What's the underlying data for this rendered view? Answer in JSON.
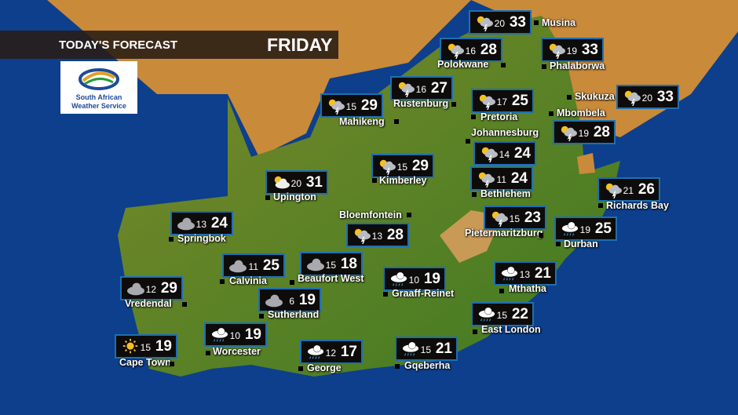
{
  "header": {
    "title": "TODAY'S FORECAST",
    "day": "FRIDAY"
  },
  "logo": {
    "line1": "South African",
    "line2": "Weather Service"
  },
  "colors": {
    "ocean": "#0d3f8c",
    "land_green": "#5e8a2a",
    "land_desert": "#c98a3a",
    "box_border": "#1f6fb0"
  },
  "stations": [
    {
      "name": "Musina",
      "min": "20",
      "max": "33",
      "icon": "thunder-partly-cloudy"
    },
    {
      "name": "Polokwane",
      "min": "16",
      "max": "28",
      "icon": "thunder-partly-cloudy"
    },
    {
      "name": "Phalaborwa",
      "min": "19",
      "max": "33",
      "icon": "thunder-partly-cloudy"
    },
    {
      "name": "Rustenburg",
      "min": "16",
      "max": "27",
      "icon": "thunder-partly-cloudy"
    },
    {
      "name": "Mahikeng",
      "min": "15",
      "max": "29",
      "icon": "thunder-partly-cloudy"
    },
    {
      "name": "Pretoria",
      "min": "17",
      "max": "25",
      "icon": "thunder-partly-cloudy"
    },
    {
      "name": "Skukuza",
      "min": "20",
      "max": "33",
      "icon": "thunder-partly-cloudy"
    },
    {
      "name": "Mbombela",
      "min": "19",
      "max": "28",
      "icon": "thunder-partly-cloudy"
    },
    {
      "name": "Johannesburg",
      "min": "14",
      "max": "24",
      "icon": "thunder-partly-cloudy"
    },
    {
      "name": "Kimberley",
      "min": "15",
      "max": "29",
      "icon": "thunder-partly-cloudy"
    },
    {
      "name": "Bethlehem",
      "min": "11",
      "max": "24",
      "icon": "thunder-partly-cloudy"
    },
    {
      "name": "Upington",
      "min": "20",
      "max": "31",
      "icon": "partly-cloudy"
    },
    {
      "name": "Richards Bay",
      "min": "21",
      "max": "26",
      "icon": "thunder-partly-cloudy"
    },
    {
      "name": "Bloemfontein",
      "min": "13",
      "max": "28",
      "icon": "thunder-partly-cloudy"
    },
    {
      "name": "Pietermaritzburg",
      "min": "15",
      "max": "23",
      "icon": "thunder-partly-cloudy"
    },
    {
      "name": "Durban",
      "min": "19",
      "max": "25",
      "icon": "rain"
    },
    {
      "name": "Springbok",
      "min": "13",
      "max": "24",
      "icon": "cloudy"
    },
    {
      "name": "Calvinia",
      "min": "11",
      "max": "25",
      "icon": "cloudy"
    },
    {
      "name": "Beaufort West",
      "min": "15",
      "max": "18",
      "icon": "cloudy"
    },
    {
      "name": "Graaff-Reinet",
      "min": "10",
      "max": "19",
      "icon": "rain"
    },
    {
      "name": "Mthatha",
      "min": "13",
      "max": "21",
      "icon": "rain"
    },
    {
      "name": "Vredendal",
      "min": "12",
      "max": "29",
      "icon": "cloudy"
    },
    {
      "name": "Sutherland",
      "min": "6",
      "max": "19",
      "icon": "cloudy"
    },
    {
      "name": "East London",
      "min": "15",
      "max": "22",
      "icon": "rain"
    },
    {
      "name": "Worcester",
      "min": "10",
      "max": "19",
      "icon": "rain"
    },
    {
      "name": "Cape Town",
      "min": "15",
      "max": "19",
      "icon": "sunny"
    },
    {
      "name": "George",
      "min": "12",
      "max": "17",
      "icon": "rain"
    },
    {
      "name": "Gqeberha",
      "min": "15",
      "max": "21",
      "icon": "rain"
    }
  ]
}
